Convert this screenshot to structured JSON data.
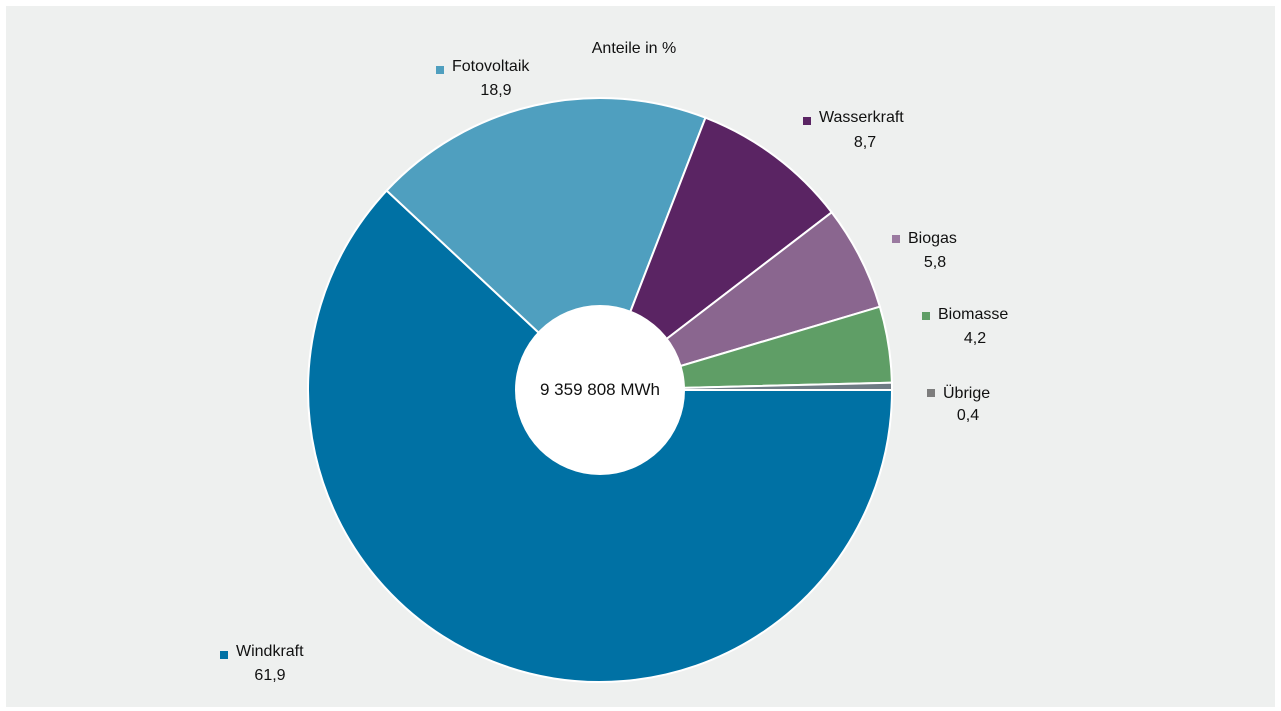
{
  "chart_data": {
    "type": "pie",
    "title": "Anteile in %",
    "center_label": "9 359 808 MWh",
    "start": "3 o'clock",
    "direction": "clockwise",
    "hole": true,
    "series": [
      {
        "name": "Windkraft",
        "value": 61.9,
        "label": "61,9",
        "color": "#0071a4",
        "marker": "#0071a4"
      },
      {
        "name": "Fotovoltaik",
        "value": 18.9,
        "label": "18,9",
        "color": "#4f9fbf",
        "marker": "#4f9fbf"
      },
      {
        "name": "Wasserkraft",
        "value": 8.7,
        "label": "8,7",
        "color": "#5a2463",
        "marker": "#5a2463"
      },
      {
        "name": "Biogas",
        "value": 5.8,
        "label": "5,8",
        "color": "#8a668f",
        "marker": "#9a7aa0"
      },
      {
        "name": "Biomasse",
        "value": 4.2,
        "label": "4,2",
        "color": "#5f9e66",
        "marker": "#5f9e66"
      },
      {
        "name": "Übrige",
        "value": 0.4,
        "label": "0,4",
        "color": "#6e7b84",
        "marker": "#7d7d7d"
      }
    ]
  }
}
